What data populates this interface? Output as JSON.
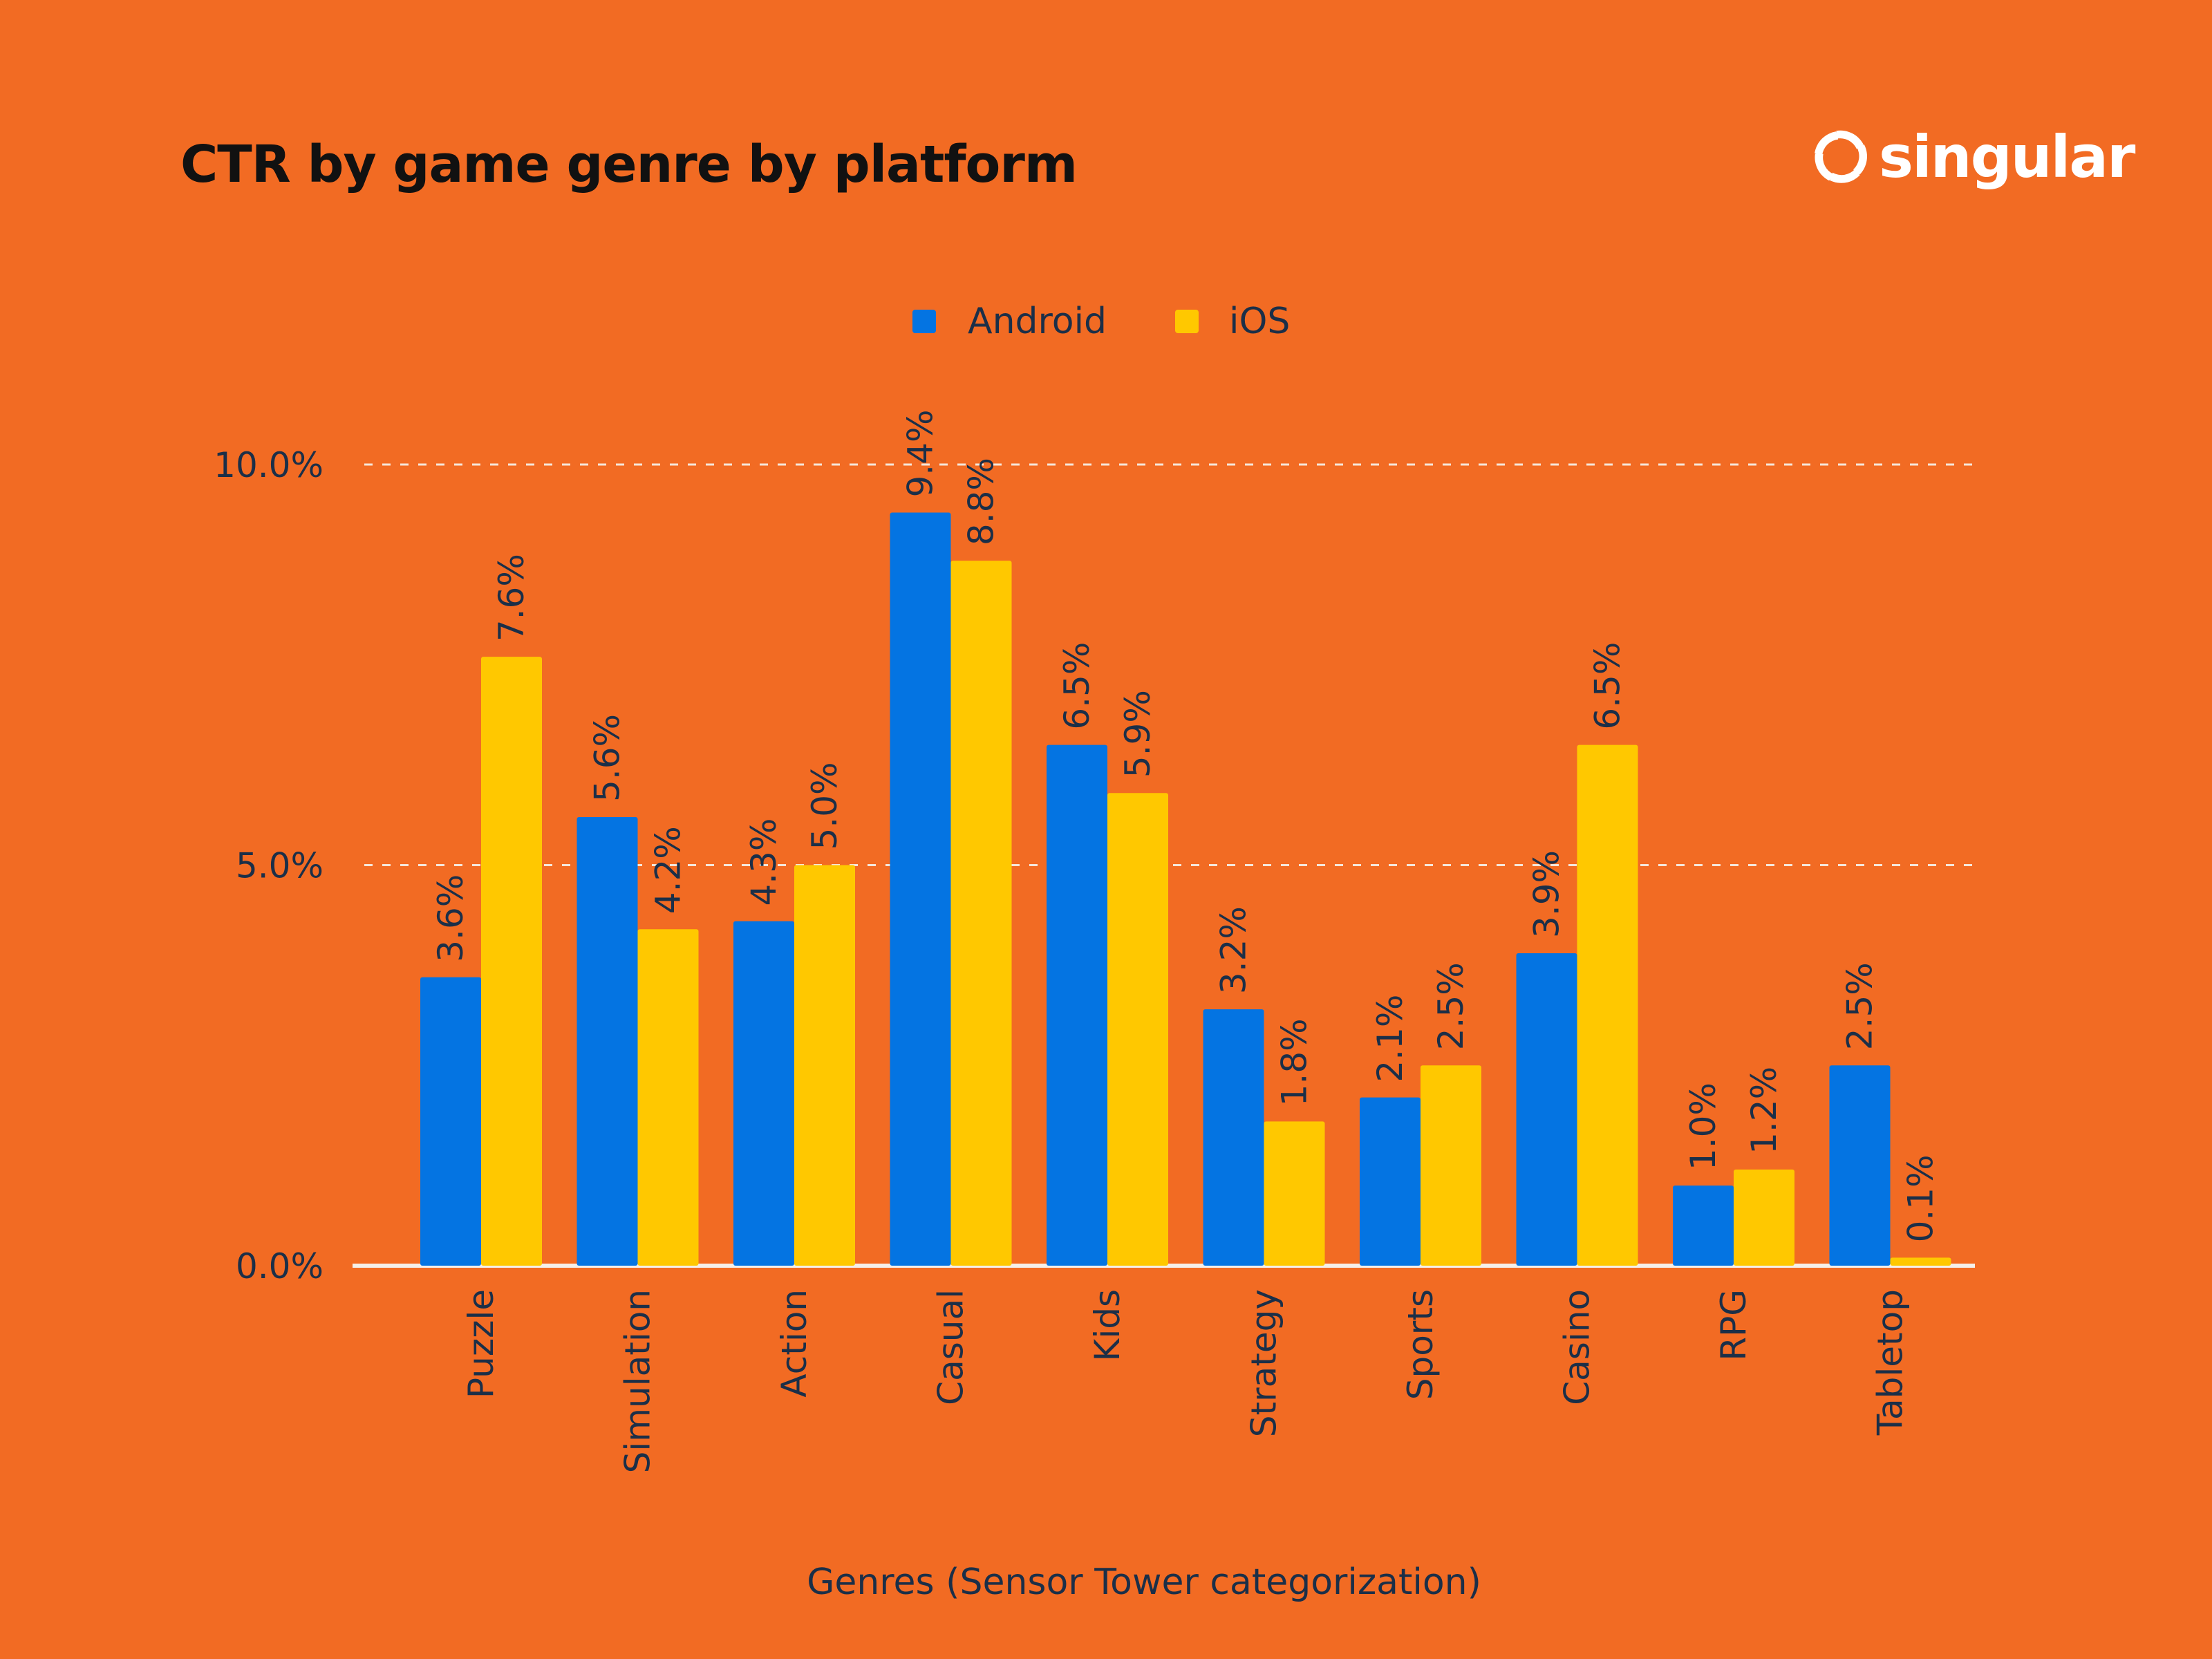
{
  "brand": {
    "name": "singular"
  },
  "colors": {
    "background": "#F26B23",
    "android": "#0474E2",
    "ios": "#FFC800",
    "text": "#1B2F48",
    "grid": "#F5E6DA"
  },
  "chart_data": {
    "type": "bar",
    "title": "CTR by game genre by platform",
    "xlabel": "Genres (Sensor Tower categorization)",
    "ylabel": "",
    "ylim": [
      0,
      10
    ],
    "yticks": [
      0,
      5,
      10
    ],
    "ytick_labels": [
      "0.0%",
      "5.0%",
      "10.0%"
    ],
    "grid": "horizontal dashed",
    "legend_position": "top-center",
    "categories": [
      "Puzzle",
      "Simulation",
      "Action",
      "Casual",
      "Kids",
      "Strategy",
      "Sports",
      "Casino",
      "RPG",
      "Tabletop"
    ],
    "series": [
      {
        "name": "Android",
        "color": "#0474E2",
        "values": [
          3.6,
          5.6,
          4.3,
          9.4,
          6.5,
          3.2,
          2.1,
          3.9,
          1.0,
          2.5
        ]
      },
      {
        "name": "iOS",
        "color": "#FFC800",
        "values": [
          7.6,
          4.2,
          5.0,
          8.8,
          5.9,
          1.8,
          2.5,
          6.5,
          1.2,
          0.1
        ]
      }
    ]
  }
}
